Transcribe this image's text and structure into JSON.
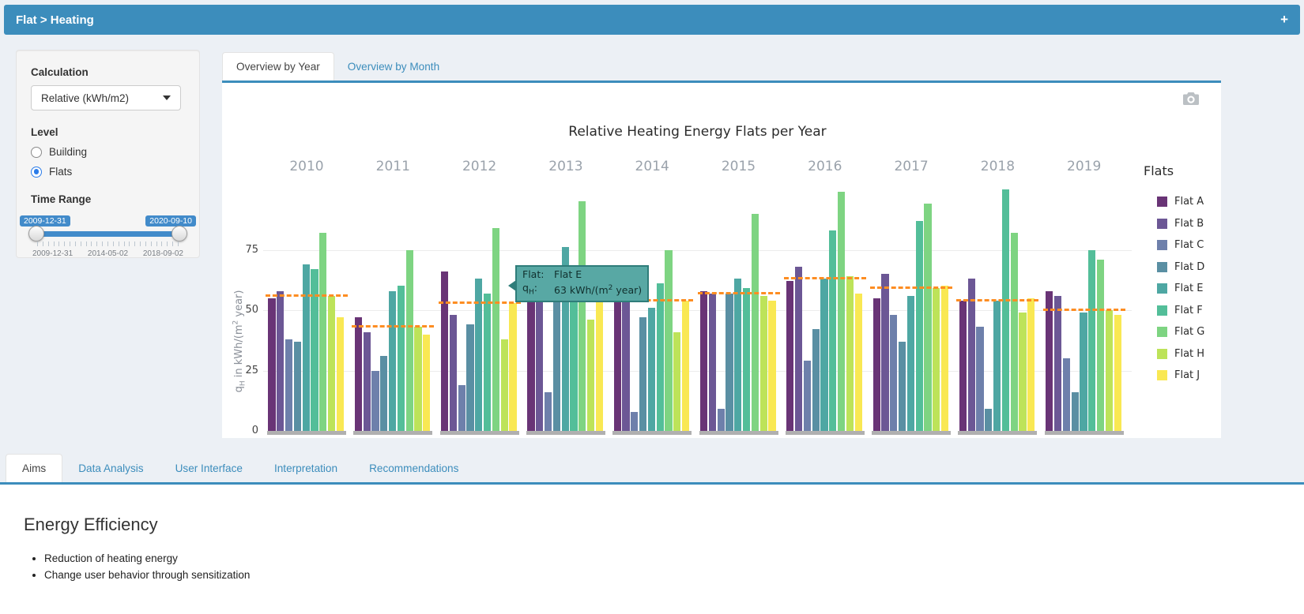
{
  "header": {
    "title": "Flat > Heating",
    "plus": "+"
  },
  "sidebar": {
    "calculation_label": "Calculation",
    "calculation_value": "Relative (kWh/m2)",
    "level_label": "Level",
    "level_options": [
      {
        "label": "Building",
        "selected": false
      },
      {
        "label": "Flats",
        "selected": true
      }
    ],
    "time_range_label": "Time Range",
    "time_from": "2009-12-31",
    "time_to": "2020-09-10",
    "slider_axis_labels": [
      "2009-12-31",
      "2014-05-02",
      "2018-09-02"
    ]
  },
  "main_tabs": [
    {
      "label": "Overview by Year",
      "active": true
    },
    {
      "label": "Overview by Month",
      "active": false
    }
  ],
  "chart_data": {
    "type": "bar",
    "title": "Relative Heating Energy Flats per Year",
    "xlabel": "",
    "ylabel": "qH in kWh/(m2 year)",
    "ylabel_parts": {
      "base": "q",
      "sub": "H",
      "mid": " in kWh/(m",
      "sup": "2",
      "end": " year)"
    },
    "legend_title": "Flats",
    "legend_position": "right",
    "grid": true,
    "yticks": [
      0,
      25,
      50,
      75
    ],
    "ylim": [
      0,
      110
    ],
    "categories": [
      "2010",
      "2011",
      "2012",
      "2013",
      "2014",
      "2015",
      "2016",
      "2017",
      "2018",
      "2019"
    ],
    "series": [
      {
        "name": "Flat A",
        "color": "#693476",
        "values": [
          55,
          47,
          66,
          56,
          56,
          58,
          62,
          55,
          54,
          58
        ]
      },
      {
        "name": "Flat B",
        "color": "#6c5795",
        "values": [
          58,
          41,
          48,
          56,
          57,
          57,
          68,
          65,
          63,
          56
        ]
      },
      {
        "name": "Flat C",
        "color": "#6e80ab",
        "values": [
          38,
          25,
          19,
          16,
          8,
          9,
          29,
          48,
          43,
          30
        ]
      },
      {
        "name": "Flat D",
        "color": "#5a8fa3",
        "values": [
          37,
          31,
          44,
          65,
          47,
          57,
          42,
          37,
          9,
          16
        ]
      },
      {
        "name": "Flat E",
        "color": "#4ea7a3",
        "values": [
          69,
          58,
          63,
          76,
          51,
          63,
          63,
          56,
          54,
          49
        ]
      },
      {
        "name": "Flat F",
        "color": "#53be99",
        "values": [
          67,
          60,
          57,
          62,
          61,
          59,
          83,
          87,
          100,
          75
        ]
      },
      {
        "name": "Flat G",
        "color": "#7ed482",
        "values": [
          82,
          75,
          84,
          95,
          75,
          90,
          99,
          94,
          82,
          71
        ]
      },
      {
        "name": "Flat H",
        "color": "#bde359",
        "values": [
          56,
          43,
          38,
          46,
          41,
          56,
          64,
          59,
          49,
          50
        ]
      },
      {
        "name": "Flat J",
        "color": "#f9e853",
        "values": [
          47,
          40,
          53,
          61,
          54,
          54,
          57,
          60,
          55,
          48
        ]
      }
    ],
    "median_per_year": [
      56,
      43,
      53,
      61,
      54,
      57,
      63,
      59,
      54,
      50
    ],
    "median_line_color": "#fd8d22"
  },
  "tooltip": {
    "row1_label": "Flat:",
    "row1_value": "Flat E",
    "row2_label_base": "q",
    "row2_label_sub": "H",
    "row2_label_colon": ":",
    "row2_value_pre": "63 kWh/(m",
    "row2_value_sup": "2",
    "row2_value_post": " year)"
  },
  "bottom_tabs": [
    {
      "label": "Aims",
      "active": true
    },
    {
      "label": "Data Analysis",
      "active": false
    },
    {
      "label": "User Interface",
      "active": false
    },
    {
      "label": "Interpretation",
      "active": false
    },
    {
      "label": "Recommendations",
      "active": false
    }
  ],
  "content": {
    "heading": "Energy Efficiency",
    "bullets": [
      "Reduction of heating energy",
      "Change user behavior through sensitization"
    ]
  }
}
